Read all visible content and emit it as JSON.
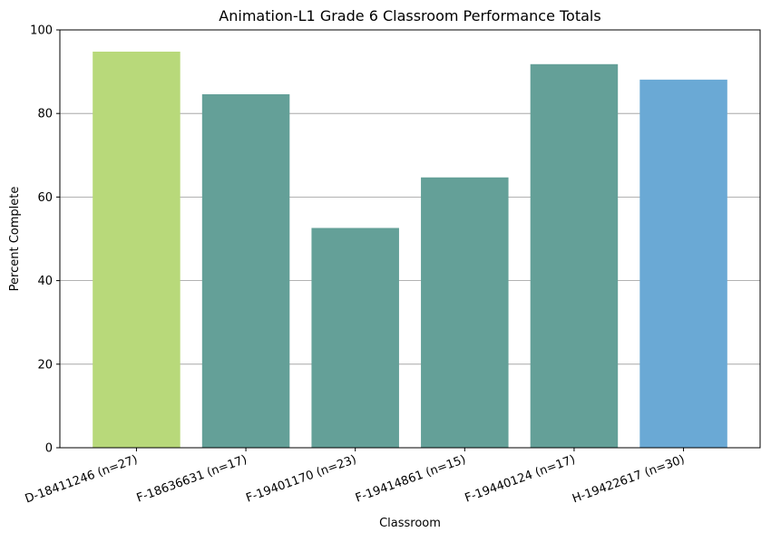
{
  "chart_data": {
    "type": "bar",
    "title": "Animation-L1 Grade 6 Classroom Performance Totals",
    "xlabel": "Classroom",
    "ylabel": "Percent Complete",
    "ylim": [
      0,
      100
    ],
    "yticks": [
      0,
      20,
      40,
      60,
      80,
      100
    ],
    "grid": "y-axis major gridlines",
    "categories": [
      "D-18411246 (n=27)",
      "F-18636631 (n=17)",
      "F-19401170 (n=23)",
      "F-19414861 (n=15)",
      "F-19440124 (n=17)",
      "H-19422617 (n=30)"
    ],
    "values": [
      94.8,
      84.6,
      52.6,
      64.7,
      91.8,
      88.1
    ],
    "colors": [
      "#b8d97a",
      "#64a098",
      "#64a098",
      "#64a098",
      "#64a098",
      "#6aa9d5"
    ]
  }
}
